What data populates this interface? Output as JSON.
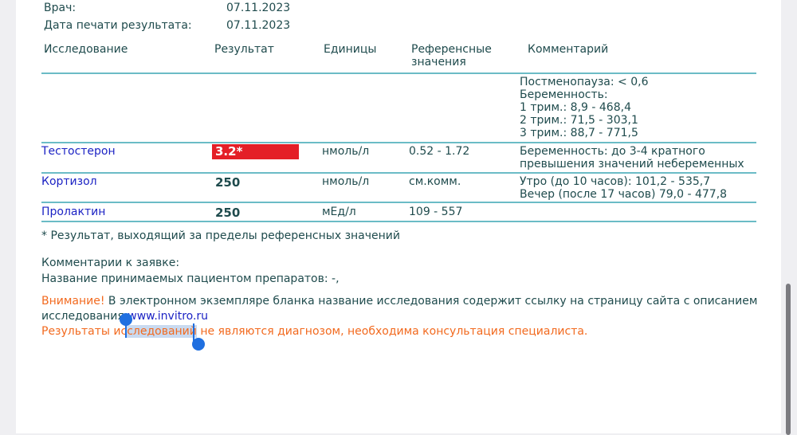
{
  "header": {
    "doctor_label": "Врач:",
    "doctor_value": "07.11.2023",
    "print_date_label": "Дата печати результата:",
    "print_date_value": "07.11.2023"
  },
  "table": {
    "columns": [
      "Исследование",
      "Результат",
      "Единицы",
      "Референсные значения",
      "Комментарий"
    ],
    "pre_comment": [
      "Постменопауза: < 0,6",
      "Беременность:",
      "1 трим.: 8,9 - 468,4",
      "2 трим.: 71,5 - 303,1",
      "3 трим.: 88,7 - 771,5"
    ],
    "rows": [
      {
        "test": "Тестостерон",
        "result": "3.2*",
        "out_of_range": true,
        "units": "нмоль/л",
        "reference": "0.52 - 1.72",
        "comment": [
          "Беременность: до 3-4 кратного",
          "превышения значений небеременных"
        ]
      },
      {
        "test": "Кортизол",
        "result": "250",
        "out_of_range": false,
        "units": "нмоль/л",
        "reference": "см.комм.",
        "comment": [
          "Утро (до 10 часов): 101,2 - 535,7",
          "Вечер (после 17 часов) 79,0 - 477,8"
        ]
      },
      {
        "test": "Пролактин",
        "result": "250",
        "out_of_range": false,
        "units": "мЕд/л",
        "reference": "109 - 557",
        "comment": []
      }
    ]
  },
  "footnote": "* Результат, выходящий за пределы референсных значений",
  "order_comments_label": "Комментарии к заявке:",
  "medications": "Название принимаемых пациентом препаратов: -,",
  "warning": {
    "label": "Внимание!",
    "text": " В электронном экземпляре бланка название исследования содержит ссылку на страницу сайта с описанием",
    "text2": "исследования ",
    "link": "www.invitro.ru",
    "disclaimer_before": "Результаты ис",
    "disclaimer_selected": "следований",
    "disclaimer_after": " не являются диагнозом, необходима консультация специалиста."
  },
  "colors": {
    "accent_line": "#6bbcc6",
    "flag": "#e41f27",
    "link": "#1c23c4",
    "warning": "#f26a1f",
    "selection": "#1f6fe0"
  }
}
